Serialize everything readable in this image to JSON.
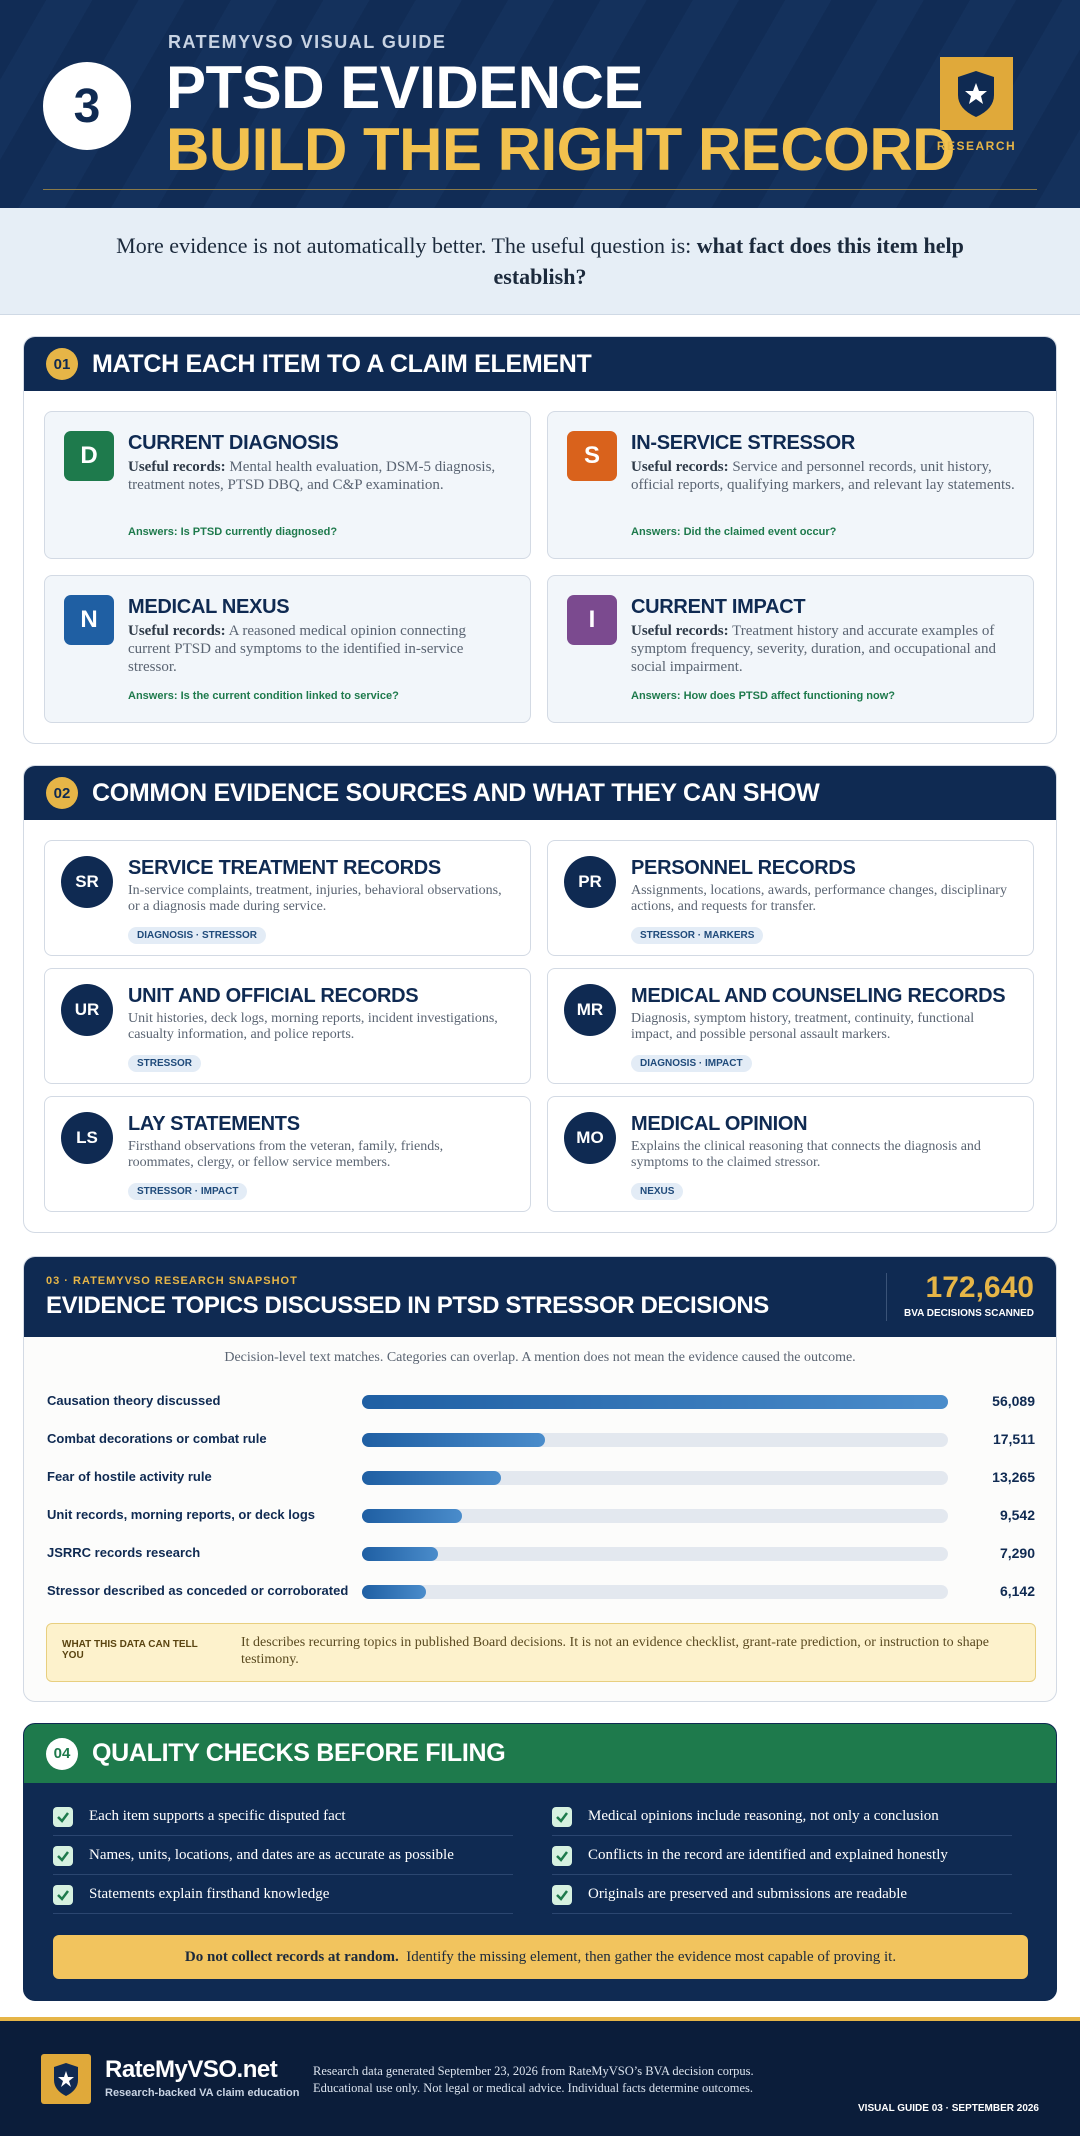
{
  "header": {
    "eyebrow": "RATEMYVSO VISUAL GUIDE",
    "number": "3",
    "title_line1": "PTSD EVIDENCE",
    "title_line2": "BUILD THE RIGHT RECORD",
    "badge": "RESEARCH"
  },
  "intro": {
    "text": "More evidence is not automatically better. The useful question is:",
    "emphasis": "what fact does this item help establish?"
  },
  "section1": {
    "number": "01",
    "title": "MATCH EACH ITEM TO A CLAIM ELEMENT",
    "items": [
      {
        "letter": "D",
        "color": "#1e7a4c",
        "title": "CURRENT DIAGNOSIS",
        "label": "Useful records:",
        "text": "Mental health evaluation, DSM-5 diagnosis, treatment notes, PTSD DBQ, and C&P examination.",
        "answers": "Answers: Is PTSD currently diagnosed?"
      },
      {
        "letter": "S",
        "color": "#d9621c",
        "title": "IN-SERVICE STRESSOR",
        "label": "Useful records:",
        "text": "Service and personnel records, unit history, official reports, qualifying markers, and relevant lay statements.",
        "answers": "Answers: Did the claimed event occur?"
      },
      {
        "letter": "N",
        "color": "#1f5fa3",
        "title": "MEDICAL NEXUS",
        "label": "Useful records:",
        "text": "A reasoned medical opinion connecting current PTSD and symptoms to the identified in-service stressor.",
        "answers": "Answers: Is the current condition linked to service?"
      },
      {
        "letter": "I",
        "color": "#7b4a8f",
        "title": "CURRENT IMPACT",
        "label": "Useful records:",
        "text": "Treatment history and accurate examples of symptom frequency, severity, duration, and occupational and social impairment.",
        "answers": "Answers: How does PTSD affect functioning now?"
      }
    ]
  },
  "section2": {
    "number": "02",
    "title": "COMMON EVIDENCE SOURCES AND WHAT THEY CAN SHOW",
    "items": [
      {
        "abbr": "SR",
        "title": "SERVICE TREATMENT RECORDS",
        "text": "In-service complaints, treatment, injuries, behavioral observations, or a diagnosis made during service.",
        "tag": "DIAGNOSIS · STRESSOR"
      },
      {
        "abbr": "PR",
        "title": "PERSONNEL RECORDS",
        "text": "Assignments, locations, awards, performance changes, disciplinary actions, and requests for transfer.",
        "tag": "STRESSOR · MARKERS"
      },
      {
        "abbr": "UR",
        "title": "UNIT AND OFFICIAL RECORDS",
        "text": "Unit histories, deck logs, morning reports, incident investigations, casualty information, and police reports.",
        "tag": "STRESSOR"
      },
      {
        "abbr": "MR",
        "title": "MEDICAL AND COUNSELING RECORDS",
        "text": "Diagnosis, symptom history, treatment, continuity, functional impact, and possible personal assault markers.",
        "tag": "DIAGNOSIS · IMPACT"
      },
      {
        "abbr": "LS",
        "title": "LAY STATEMENTS",
        "text": "Firsthand observations from the veteran, family, friends, roommates, clergy, or fellow service members.",
        "tag": "STRESSOR · IMPACT"
      },
      {
        "abbr": "MO",
        "title": "MEDICAL OPINION",
        "text": "Explains the clinical reasoning that connects the diagnosis and symptoms to the claimed stressor.",
        "tag": "NEXUS"
      }
    ]
  },
  "snapshot": {
    "eyebrow": "03 · RATEMYVSO RESEARCH SNAPSHOT",
    "title": "EVIDENCE TOPICS DISCUSSED IN PTSD STRESSOR DECISIONS",
    "total": "172,640",
    "total_label": "BVA DECISIONS SCANNED",
    "subtitle": "Decision-level text matches. Categories can overlap. A mention does not mean the evidence caused the outcome.",
    "note_label": "WHAT THIS DATA CAN TELL YOU",
    "note_text": "It describes recurring topics in published Board decisions. It is not an evidence checklist, grant-rate prediction, or instruction to shape testimony."
  },
  "chart_data": {
    "type": "bar",
    "orientation": "horizontal",
    "categories": [
      "Causation theory discussed",
      "Combat decorations or combat rule",
      "Fear of hostile activity rule",
      "Unit records, morning reports, or deck logs",
      "JSRRC records research",
      "Stressor described as conceded or corroborated"
    ],
    "values": [
      56089,
      17511,
      13265,
      9542,
      7290,
      6142
    ],
    "value_labels": [
      "56,089",
      "17,511",
      "13,265",
      "9,542",
      "7,290",
      "6,142"
    ],
    "xlim": [
      0,
      56089
    ],
    "color": "#1f5fa3"
  },
  "section4": {
    "number": "04",
    "title": "QUALITY CHECKS BEFORE FILING",
    "checks": [
      "Each item supports a specific disputed fact",
      "Medical opinions include reasoning, not only a conclusion",
      "Names, units, locations, and dates are as accurate as possible",
      "Conflicts in the record are identified and explained honestly",
      "Statements explain firsthand knowledge",
      "Originals are preserved and submissions are readable"
    ],
    "callout_bold": "Do not collect records at random.",
    "callout_text": "Identify the missing element, then gather the evidence most capable of proving it."
  },
  "footer": {
    "brand": "RateMyVSO.net",
    "tagline": "Research-backed VA claim education",
    "lines": [
      "Research data generated September 23, 2026 from RateMyVSO’s BVA decision corpus.",
      "Educational use only. Not legal or medical advice. Individual facts determine outcomes."
    ],
    "edition": "VISUAL GUIDE 03 · SEPTEMBER 2026"
  }
}
